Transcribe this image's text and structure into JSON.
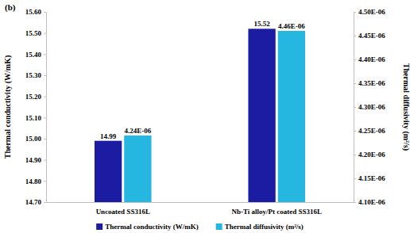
{
  "chart_data": {
    "type": "bar",
    "title": "(b)",
    "categories": [
      "Uncoated SS316L",
      "Nb-Ti alloy/Pt coated SS316L"
    ],
    "y_label": "Thermal conductivity (W/mK)",
    "y2_label": "Thermal diffusivity (m²/s)",
    "series": [
      {
        "name": "Thermal conductivity (W/mK)",
        "color": "#1c1ca3",
        "values": [
          14.99,
          15.52
        ]
      },
      {
        "name": "Thermal diffusivity (m²/s)",
        "color": "#25b7df",
        "axis": "y2",
        "values": [
          4.24e-06,
          4.46e-06
        ],
        "value_labels": [
          "4.24E-06",
          "4.46E-06"
        ]
      }
    ],
    "ylim": [
      14.7,
      15.6
    ],
    "yticks": [
      {
        "value": 14.7,
        "label": "14.70"
      },
      {
        "value": 14.8,
        "label": "14.80"
      },
      {
        "value": 14.9,
        "label": "14.90"
      },
      {
        "value": 15.0,
        "label": "15.00"
      },
      {
        "value": 15.1,
        "label": "15.10"
      },
      {
        "value": 15.2,
        "label": "15.20"
      },
      {
        "value": 15.3,
        "label": "15.30"
      },
      {
        "value": 15.4,
        "label": "15.40"
      },
      {
        "value": 15.5,
        "label": "15.50"
      },
      {
        "value": 15.6,
        "label": "15.60"
      }
    ],
    "y2lim": [
      4.1e-06,
      4.5e-06
    ],
    "y2ticks": [
      {
        "value": 4.1e-06,
        "label": "4.10E-06"
      },
      {
        "value": 4.15e-06,
        "label": "4.15E-06"
      },
      {
        "value": 4.2e-06,
        "label": "4.20E-06"
      },
      {
        "value": 4.25e-06,
        "label": "4.25E-06"
      },
      {
        "value": 4.3e-06,
        "label": "4.30E-06"
      },
      {
        "value": 4.35e-06,
        "label": "4.35E-06"
      },
      {
        "value": 4.4e-06,
        "label": "4.40E-06"
      },
      {
        "value": 4.45e-06,
        "label": "4.45E-06"
      },
      {
        "value": 4.5e-06,
        "label": "4.50E-06"
      }
    ],
    "data_labels": true,
    "legend": "bottom",
    "grid": false
  }
}
